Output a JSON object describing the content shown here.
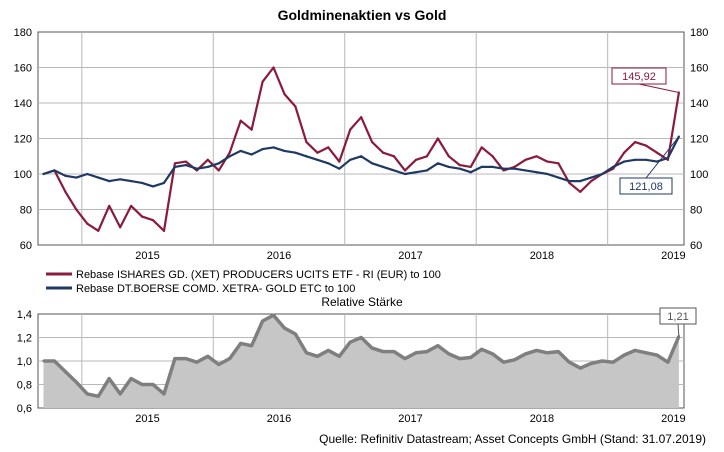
{
  "chart_data": [
    {
      "type": "line",
      "title": "Goldminenaktien vs Gold",
      "x_ticks": [
        "2015",
        "2016",
        "2017",
        "2018",
        "2019"
      ],
      "xlim": [
        "2014-09",
        "2019-07-31"
      ],
      "ylim": [
        60,
        180
      ],
      "y_ticks": [
        "60",
        "80",
        "100",
        "120",
        "140",
        "160",
        "180"
      ],
      "grid": true,
      "legend_position": "below",
      "series": [
        {
          "name": "Rebase ISHARES GD. (XET) PRODUCERS UCITS ETF - RI (EUR) to 100",
          "color": "#8b1a3c",
          "x": [
            "2014-09",
            "2014-10",
            "2014-11",
            "2014-12",
            "2015-01",
            "2015-02",
            "2015-03",
            "2015-04",
            "2015-05",
            "2015-06",
            "2015-07",
            "2015-08",
            "2015-09",
            "2015-10",
            "2015-11",
            "2015-12",
            "2016-01",
            "2016-02",
            "2016-03",
            "2016-04",
            "2016-05",
            "2016-06",
            "2016-07",
            "2016-08",
            "2016-09",
            "2016-10",
            "2016-11",
            "2016-12",
            "2017-01",
            "2017-02",
            "2017-03",
            "2017-04",
            "2017-05",
            "2017-06",
            "2017-07",
            "2017-08",
            "2017-09",
            "2017-10",
            "2017-11",
            "2017-12",
            "2018-01",
            "2018-02",
            "2018-03",
            "2018-04",
            "2018-05",
            "2018-06",
            "2018-07",
            "2018-08",
            "2018-09",
            "2018-10",
            "2018-11",
            "2018-12",
            "2019-01",
            "2019-02",
            "2019-03",
            "2019-04",
            "2019-05",
            "2019-06",
            "2019-07"
          ],
          "values": [
            100,
            102,
            90,
            80,
            72,
            68,
            82,
            70,
            82,
            76,
            74,
            68,
            106,
            107,
            102,
            108,
            102,
            112,
            130,
            125,
            152,
            160,
            145,
            138,
            118,
            112,
            115,
            107,
            125,
            132,
            118,
            112,
            110,
            102,
            108,
            110,
            120,
            110,
            105,
            104,
            115,
            110,
            102,
            104,
            108,
            110,
            107,
            106,
            95,
            90,
            96,
            100,
            103,
            112,
            118,
            116,
            112,
            108,
            145.92
          ]
        },
        {
          "name": "Rebase DT.BOERSE COMD. XETRA- GOLD ETC to 100",
          "color": "#1f3864",
          "x": [
            "2014-09",
            "2014-10",
            "2014-11",
            "2014-12",
            "2015-01",
            "2015-02",
            "2015-03",
            "2015-04",
            "2015-05",
            "2015-06",
            "2015-07",
            "2015-08",
            "2015-09",
            "2015-10",
            "2015-11",
            "2015-12",
            "2016-01",
            "2016-02",
            "2016-03",
            "2016-04",
            "2016-05",
            "2016-06",
            "2016-07",
            "2016-08",
            "2016-09",
            "2016-10",
            "2016-11",
            "2016-12",
            "2017-01",
            "2017-02",
            "2017-03",
            "2017-04",
            "2017-05",
            "2017-06",
            "2017-07",
            "2017-08",
            "2017-09",
            "2017-10",
            "2017-11",
            "2017-12",
            "2018-01",
            "2018-02",
            "2018-03",
            "2018-04",
            "2018-05",
            "2018-06",
            "2018-07",
            "2018-08",
            "2018-09",
            "2018-10",
            "2018-11",
            "2018-12",
            "2019-01",
            "2019-02",
            "2019-03",
            "2019-04",
            "2019-05",
            "2019-06",
            "2019-07"
          ],
          "values": [
            100,
            102,
            99,
            98,
            100,
            98,
            96,
            97,
            96,
            95,
            93,
            95,
            104,
            105,
            103,
            104,
            106,
            110,
            113,
            111,
            114,
            115,
            113,
            112,
            110,
            108,
            106,
            103,
            108,
            110,
            106,
            104,
            102,
            100,
            101,
            102,
            106,
            104,
            103,
            101,
            104,
            104,
            103,
            103,
            102,
            101,
            100,
            98,
            96,
            96,
            98,
            100,
            104,
            107,
            108,
            108,
            107,
            109,
            121.08
          ]
        }
      ],
      "annotations": [
        "145,92",
        "121,08"
      ]
    },
    {
      "type": "area",
      "title": "Relative Stärke",
      "x_ticks": [
        "2015",
        "2016",
        "2017",
        "2018",
        "2019"
      ],
      "xlim": [
        "2014-09",
        "2019-07-31"
      ],
      "ylim": [
        0.6,
        1.4
      ],
      "y_ticks": [
        "0,6",
        "0,8",
        "1,0",
        "1,2",
        "1,4"
      ],
      "grid": true,
      "series": [
        {
          "color": "#7f7f7f",
          "x": [
            "2014-09",
            "2014-10",
            "2014-11",
            "2014-12",
            "2015-01",
            "2015-02",
            "2015-03",
            "2015-04",
            "2015-05",
            "2015-06",
            "2015-07",
            "2015-08",
            "2015-09",
            "2015-10",
            "2015-11",
            "2015-12",
            "2016-01",
            "2016-02",
            "2016-03",
            "2016-04",
            "2016-05",
            "2016-06",
            "2016-07",
            "2016-08",
            "2016-09",
            "2016-10",
            "2016-11",
            "2016-12",
            "2017-01",
            "2017-02",
            "2017-03",
            "2017-04",
            "2017-05",
            "2017-06",
            "2017-07",
            "2017-08",
            "2017-09",
            "2017-10",
            "2017-11",
            "2017-12",
            "2018-01",
            "2018-02",
            "2018-03",
            "2018-04",
            "2018-05",
            "2018-06",
            "2018-07",
            "2018-08",
            "2018-09",
            "2018-10",
            "2018-11",
            "2018-12",
            "2019-01",
            "2019-02",
            "2019-03",
            "2019-04",
            "2019-05",
            "2019-06",
            "2019-07"
          ],
          "values": [
            1.0,
            1.0,
            0.91,
            0.82,
            0.72,
            0.7,
            0.85,
            0.72,
            0.85,
            0.8,
            0.8,
            0.72,
            1.02,
            1.02,
            0.99,
            1.04,
            0.97,
            1.02,
            1.15,
            1.13,
            1.34,
            1.39,
            1.28,
            1.23,
            1.07,
            1.04,
            1.09,
            1.04,
            1.16,
            1.2,
            1.11,
            1.08,
            1.08,
            1.02,
            1.07,
            1.08,
            1.13,
            1.06,
            1.02,
            1.03,
            1.1,
            1.06,
            0.99,
            1.01,
            1.06,
            1.09,
            1.07,
            1.08,
            0.99,
            0.94,
            0.98,
            1.0,
            0.99,
            1.05,
            1.09,
            1.07,
            1.05,
            0.99,
            1.21
          ]
        }
      ],
      "annotations": [
        "1,21"
      ]
    }
  ],
  "source": "Quelle: Refinitiv Datastream; Asset Concepts GmbH (Stand: 31.07.2019)"
}
